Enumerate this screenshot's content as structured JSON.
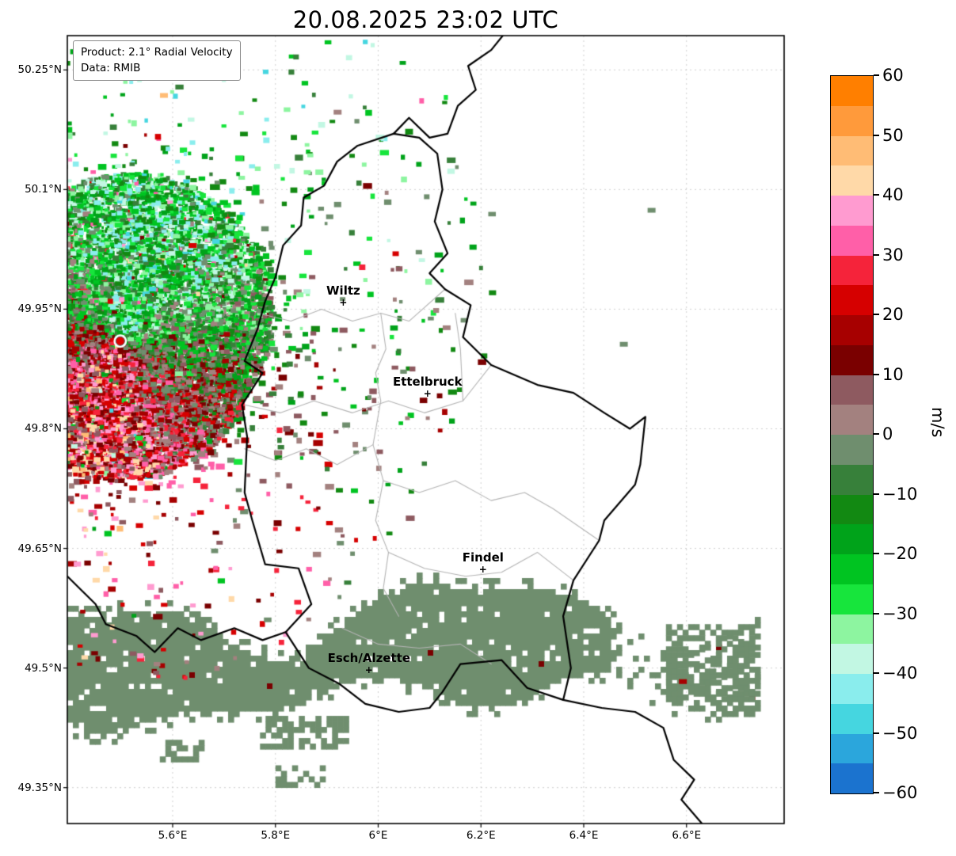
{
  "title": "20.08.2025 23:02 UTC",
  "legend": {
    "product": "Product: 2.1° Radial Velocity",
    "source": "Data: RMIB"
  },
  "chart_data": {
    "type": "heatmap",
    "description": "Doppler weather radar radial velocity PPI over the Luxembourg region with country and district borders",
    "timestamp": "20.08.2025 23:02 UTC",
    "product": "2.1° Radial Velocity",
    "data_source": "RMIB",
    "units": "m/s",
    "x_axis": {
      "range": [
        5.395,
        6.79
      ],
      "ticks": [
        5.6,
        5.8,
        6.0,
        6.2,
        6.4,
        6.6
      ],
      "tick_labels": [
        "5.6°E",
        "5.8°E",
        "6°E",
        "6.2°E",
        "6.4°E",
        "6.6°E"
      ]
    },
    "y_axis": {
      "range": [
        49.305,
        50.293
      ],
      "ticks": [
        50.25,
        50.1,
        49.95,
        49.8,
        49.65,
        49.5,
        49.35
      ],
      "tick_labels": [
        "50.25°N",
        "50.1°N",
        "49.95°N",
        "49.8°N",
        "49.65°N",
        "49.5°N",
        "49.35°N"
      ]
    },
    "grid": {
      "visible": true,
      "style": "dashed",
      "color": "#c9c9c9"
    },
    "colorbar": {
      "vmin": -60,
      "vmax": 60,
      "band_step": 5,
      "ticks": [
        60,
        50,
        40,
        30,
        20,
        10,
        0,
        -10,
        -20,
        -30,
        -40,
        -50,
        -60
      ],
      "tick_labels": [
        "60",
        "50",
        "40",
        "30",
        "20",
        "10",
        "0",
        "−10",
        "−20",
        "−30",
        "−40",
        "−50",
        "−60"
      ],
      "label": "m/s",
      "colors_top_to_bottom": [
        "#ff7f00",
        "#ff9a3b",
        "#ffbc75",
        "#ffd9a8",
        "#ff9bd0",
        "#ff5fa8",
        "#f5233a",
        "#d60000",
        "#a70000",
        "#7a0000",
        "#8e5a60",
        "#a3817f",
        "#6f8e6e",
        "#37803a",
        "#128912",
        "#00a31a",
        "#00c421",
        "#17e53c",
        "#8df5a0",
        "#c2f7e3",
        "#8aeded",
        "#45d6e0",
        "#2ba6dc",
        "#1b73cf"
      ]
    },
    "radar_site": {
      "lon": 5.498,
      "lat": 49.91,
      "marker_color": "#dd0000"
    },
    "velocity_field": {
      "amplitude_ms": 26,
      "positive_azimuth_deg": 110,
      "noise_ms": 22,
      "dense_radius_deg_lon": 0.27,
      "sparse_radius_deg_lon": 0.47
    },
    "precip_band": {
      "value_ms": -2.5,
      "lat_center": 49.517,
      "lon_range": [
        5.395,
        6.74
      ],
      "clusters": [
        {
          "lon": [
            5.77,
            5.94
          ],
          "lat": [
            49.405,
            49.44
          ],
          "p": 0.5
        },
        {
          "lon": [
            5.8,
            5.89
          ],
          "lat": [
            49.355,
            49.378
          ],
          "p": 0.55
        },
        {
          "lon": [
            5.575,
            5.66
          ],
          "lat": [
            49.385,
            49.41
          ],
          "p": 0.5
        },
        {
          "lon": [
            6.56,
            6.74
          ],
          "lat": [
            49.46,
            49.555
          ],
          "p": 0.5
        }
      ]
    },
    "isolated_echoes": [
      {
        "lon": 6.532,
        "lat": 50.074,
        "v": -4
      },
      {
        "lon": 6.478,
        "lat": 49.906,
        "v": -4
      },
      {
        "lon": 5.921,
        "lat": 50.197,
        "v": 4
      },
      {
        "lon": 5.583,
        "lat": 50.218,
        "v": 47
      },
      {
        "lon": 6.593,
        "lat": 49.483,
        "v": 18
      }
    ],
    "cities": [
      {
        "name": "Wiltz",
        "lon": 5.932,
        "lat": 49.958
      },
      {
        "name": "Ettelbruck",
        "lon": 6.096,
        "lat": 49.844
      },
      {
        "name": "Findel",
        "lon": 6.204,
        "lat": 49.624
      },
      {
        "name": "Esch/Alzette",
        "lon": 5.982,
        "lat": 49.498
      }
    ],
    "borders": {
      "country_color": "#000000",
      "district_color": "#b3b3b3",
      "country_outline": [
        [
          6.03,
          50.17
        ],
        [
          6.08,
          50.165
        ],
        [
          6.115,
          50.145
        ],
        [
          6.125,
          50.1
        ],
        [
          6.11,
          50.06
        ],
        [
          6.135,
          50.02
        ],
        [
          6.1,
          49.995
        ],
        [
          6.13,
          49.975
        ],
        [
          6.18,
          49.955
        ],
        [
          6.165,
          49.915
        ],
        [
          6.22,
          49.88
        ],
        [
          6.31,
          49.855
        ],
        [
          6.38,
          49.845
        ],
        [
          6.44,
          49.82
        ],
        [
          6.49,
          49.8
        ],
        [
          6.52,
          49.815
        ],
        [
          6.51,
          49.755
        ],
        [
          6.5,
          49.73
        ],
        [
          6.44,
          49.685
        ],
        [
          6.43,
          49.66
        ],
        [
          6.38,
          49.61
        ],
        [
          6.36,
          49.565
        ],
        [
          6.375,
          49.5
        ],
        [
          6.36,
          49.46
        ],
        [
          6.29,
          49.475
        ],
        [
          6.24,
          49.51
        ],
        [
          6.16,
          49.505
        ],
        [
          6.125,
          49.47
        ],
        [
          6.1,
          49.45
        ],
        [
          6.04,
          49.445
        ],
        [
          5.975,
          49.455
        ],
        [
          5.925,
          49.48
        ],
        [
          5.865,
          49.5
        ],
        [
          5.82,
          49.545
        ],
        [
          5.87,
          49.58
        ],
        [
          5.845,
          49.625
        ],
        [
          5.78,
          49.63
        ],
        [
          5.755,
          49.685
        ],
        [
          5.74,
          49.72
        ],
        [
          5.745,
          49.79
        ],
        [
          5.735,
          49.83
        ],
        [
          5.775,
          49.87
        ],
        [
          5.74,
          49.885
        ],
        [
          5.765,
          49.925
        ],
        [
          5.78,
          49.96
        ],
        [
          5.8,
          49.99
        ],
        [
          5.815,
          50.03
        ],
        [
          5.85,
          50.055
        ],
        [
          5.855,
          50.09
        ],
        [
          5.895,
          50.105
        ],
        [
          5.92,
          50.135
        ],
        [
          5.96,
          50.155
        ],
        [
          6.03,
          50.17
        ]
      ],
      "country_segments": [
        [
          [
            5.395,
            49.615
          ],
          [
            5.45,
            49.58
          ],
          [
            5.47,
            49.555
          ],
          [
            5.53,
            49.54
          ],
          [
            5.565,
            49.52
          ],
          [
            5.61,
            49.55
          ],
          [
            5.655,
            49.535
          ],
          [
            5.72,
            49.55
          ],
          [
            5.775,
            49.535
          ],
          [
            5.82,
            49.545
          ]
        ],
        [
          [
            6.36,
            49.46
          ],
          [
            6.435,
            49.45
          ],
          [
            6.5,
            49.445
          ],
          [
            6.555,
            49.425
          ],
          [
            6.575,
            49.385
          ],
          [
            6.615,
            49.36
          ],
          [
            6.59,
            49.335
          ],
          [
            6.63,
            49.305
          ]
        ],
        [
          [
            6.03,
            50.17
          ],
          [
            6.06,
            50.19
          ],
          [
            6.1,
            50.165
          ],
          [
            6.135,
            50.17
          ],
          [
            6.155,
            50.205
          ],
          [
            6.19,
            50.225
          ],
          [
            6.175,
            50.255
          ],
          [
            6.22,
            50.275
          ],
          [
            6.245,
            50.295
          ]
        ]
      ],
      "districts": [
        [
          [
            5.765,
            49.945
          ],
          [
            5.83,
            49.935
          ],
          [
            5.89,
            49.95
          ],
          [
            5.95,
            49.935
          ],
          [
            6.005,
            49.945
          ],
          [
            6.06,
            49.935
          ],
          [
            6.13,
            49.975
          ]
        ],
        [
          [
            5.74,
            49.83
          ],
          [
            5.81,
            49.82
          ],
          [
            5.875,
            49.835
          ],
          [
            5.95,
            49.82
          ],
          [
            6.02,
            49.835
          ],
          [
            6.09,
            49.82
          ],
          [
            6.165,
            49.835
          ],
          [
            6.22,
            49.88
          ]
        ],
        [
          [
            6.005,
            49.945
          ],
          [
            6.015,
            49.9
          ],
          [
            5.995,
            49.87
          ],
          [
            6.005,
            49.835
          ]
        ],
        [
          [
            6.005,
            49.835
          ],
          [
            5.99,
            49.78
          ],
          [
            6.01,
            49.735
          ],
          [
            5.995,
            49.685
          ],
          [
            6.02,
            49.645
          ],
          [
            6.01,
            49.6
          ],
          [
            6.04,
            49.565
          ]
        ],
        [
          [
            5.74,
            49.775
          ],
          [
            5.8,
            49.76
          ],
          [
            5.86,
            49.775
          ],
          [
            5.92,
            49.755
          ],
          [
            5.99,
            49.78
          ]
        ],
        [
          [
            6.01,
            49.735
          ],
          [
            6.08,
            49.72
          ],
          [
            6.15,
            49.735
          ],
          [
            6.22,
            49.71
          ],
          [
            6.285,
            49.72
          ],
          [
            6.34,
            49.7
          ],
          [
            6.43,
            49.66
          ]
        ],
        [
          [
            6.02,
            49.645
          ],
          [
            6.09,
            49.625
          ],
          [
            6.17,
            49.615
          ],
          [
            6.24,
            49.62
          ],
          [
            6.31,
            49.645
          ],
          [
            6.38,
            49.61
          ]
        ],
        [
          [
            5.93,
            49.55
          ],
          [
            6.0,
            49.53
          ],
          [
            6.08,
            49.525
          ],
          [
            6.16,
            49.53
          ],
          [
            6.22,
            49.505
          ]
        ],
        [
          [
            6.15,
            49.945
          ],
          [
            6.16,
            49.9
          ],
          [
            6.165,
            49.835
          ]
        ]
      ]
    }
  }
}
